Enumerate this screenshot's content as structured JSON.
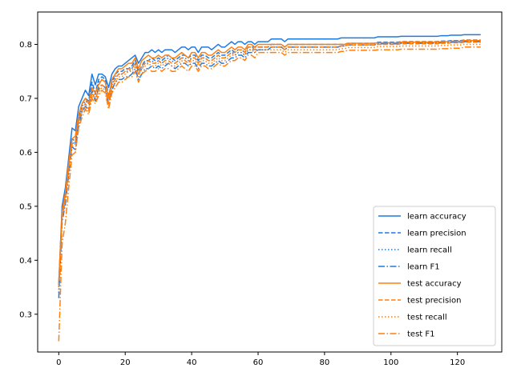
{
  "chart_data": {
    "type": "line",
    "title": "",
    "xlabel": "",
    "ylabel": "",
    "xlim": [
      -6.35,
      133.35
    ],
    "ylim": [
      0.23,
      0.86
    ],
    "xticks": [
      "0",
      "20",
      "40",
      "60",
      "80",
      "100",
      "120"
    ],
    "yticks": [
      "0.3",
      "0.4",
      "0.5",
      "0.6",
      "0.7",
      "0.8"
    ],
    "grid": false,
    "legend_position": "lower-right",
    "colors": {
      "learn": "#1f7ae0",
      "test": "#ff7f0e"
    },
    "x": [
      0,
      1,
      2,
      3,
      4,
      5,
      6,
      7,
      8,
      9,
      10,
      11,
      12,
      13,
      14,
      15,
      16,
      17,
      18,
      19,
      20,
      21,
      22,
      23,
      24,
      25,
      26,
      27,
      28,
      29,
      30,
      31,
      32,
      33,
      34,
      35,
      36,
      37,
      38,
      39,
      40,
      41,
      42,
      43,
      44,
      45,
      46,
      47,
      48,
      49,
      50,
      51,
      52,
      53,
      54,
      55,
      56,
      57,
      58,
      59,
      60,
      61,
      62,
      63,
      64,
      65,
      66,
      67,
      68,
      69,
      70,
      71,
      72,
      73,
      74,
      75,
      76,
      77,
      78,
      79,
      80,
      81,
      82,
      83,
      84,
      85,
      86,
      87,
      88,
      89,
      90,
      91,
      92,
      93,
      94,
      95,
      96,
      97,
      98,
      99,
      100,
      101,
      102,
      103,
      104,
      105,
      106,
      107,
      108,
      109,
      110,
      111,
      112,
      113,
      114,
      115,
      116,
      117,
      118,
      119,
      120,
      121,
      122,
      123,
      124,
      125,
      126,
      127
    ],
    "series": [
      {
        "name": "learn accuracy",
        "group": "learn",
        "dash": "solid",
        "values": [
          0.355,
          0.5,
          0.535,
          0.59,
          0.645,
          0.64,
          0.685,
          0.7,
          0.715,
          0.705,
          0.745,
          0.725,
          0.745,
          0.745,
          0.74,
          0.72,
          0.745,
          0.755,
          0.76,
          0.76,
          0.765,
          0.77,
          0.775,
          0.78,
          0.765,
          0.775,
          0.785,
          0.785,
          0.79,
          0.785,
          0.79,
          0.785,
          0.79,
          0.79,
          0.79,
          0.785,
          0.79,
          0.795,
          0.795,
          0.79,
          0.795,
          0.795,
          0.785,
          0.795,
          0.795,
          0.795,
          0.79,
          0.795,
          0.8,
          0.795,
          0.795,
          0.8,
          0.805,
          0.8,
          0.805,
          0.805,
          0.8,
          0.805,
          0.805,
          0.8,
          0.805,
          0.805,
          0.805,
          0.805,
          0.81,
          0.81,
          0.81,
          0.81,
          0.805,
          0.81,
          0.81,
          0.81,
          0.81,
          0.81,
          0.81,
          0.81,
          0.81,
          0.81,
          0.81,
          0.81,
          0.81,
          0.81,
          0.81,
          0.81,
          0.81,
          0.812,
          0.812,
          0.812,
          0.812,
          0.812,
          0.812,
          0.812,
          0.812,
          0.812,
          0.812,
          0.812,
          0.814,
          0.814,
          0.814,
          0.814,
          0.814,
          0.814,
          0.814,
          0.815,
          0.815,
          0.815,
          0.815,
          0.815,
          0.815,
          0.815,
          0.815,
          0.815,
          0.815,
          0.815,
          0.815,
          0.816,
          0.816,
          0.816,
          0.817,
          0.817,
          0.817,
          0.817,
          0.818,
          0.818,
          0.818,
          0.818,
          0.818,
          0.818
        ]
      },
      {
        "name": "learn precision",
        "group": "learn",
        "dash": "dashed",
        "values": [
          0.35,
          0.485,
          0.52,
          0.575,
          0.625,
          0.62,
          0.665,
          0.69,
          0.7,
          0.695,
          0.73,
          0.71,
          0.735,
          0.74,
          0.735,
          0.705,
          0.73,
          0.745,
          0.75,
          0.75,
          0.755,
          0.755,
          0.76,
          0.77,
          0.75,
          0.76,
          0.77,
          0.77,
          0.775,
          0.77,
          0.775,
          0.77,
          0.775,
          0.78,
          0.775,
          0.77,
          0.775,
          0.78,
          0.78,
          0.775,
          0.78,
          0.78,
          0.77,
          0.78,
          0.78,
          0.775,
          0.775,
          0.78,
          0.785,
          0.78,
          0.78,
          0.785,
          0.79,
          0.785,
          0.79,
          0.79,
          0.785,
          0.795,
          0.795,
          0.795,
          0.795,
          0.795,
          0.795,
          0.795,
          0.8,
          0.8,
          0.8,
          0.8,
          0.795,
          0.8,
          0.8,
          0.8,
          0.8,
          0.8,
          0.8,
          0.8,
          0.8,
          0.8,
          0.8,
          0.8,
          0.8,
          0.8,
          0.8,
          0.8,
          0.8,
          0.8,
          0.8,
          0.802,
          0.802,
          0.802,
          0.802,
          0.802,
          0.802,
          0.802,
          0.802,
          0.802,
          0.804,
          0.804,
          0.804,
          0.804,
          0.804,
          0.804,
          0.804,
          0.805,
          0.805,
          0.805,
          0.805,
          0.805,
          0.805,
          0.805,
          0.805,
          0.805,
          0.805,
          0.805,
          0.805,
          0.806,
          0.806,
          0.806,
          0.807,
          0.807,
          0.807,
          0.807,
          0.808,
          0.808,
          0.808,
          0.808,
          0.808,
          0.808
        ]
      },
      {
        "name": "learn recall",
        "group": "learn",
        "dash": "dotted",
        "values": [
          0.34,
          0.48,
          0.515,
          0.57,
          0.62,
          0.615,
          0.66,
          0.685,
          0.695,
          0.69,
          0.725,
          0.705,
          0.73,
          0.735,
          0.73,
          0.7,
          0.725,
          0.74,
          0.745,
          0.745,
          0.75,
          0.75,
          0.755,
          0.765,
          0.745,
          0.755,
          0.765,
          0.765,
          0.77,
          0.765,
          0.77,
          0.765,
          0.77,
          0.775,
          0.77,
          0.765,
          0.77,
          0.775,
          0.775,
          0.77,
          0.775,
          0.775,
          0.765,
          0.775,
          0.775,
          0.77,
          0.77,
          0.775,
          0.78,
          0.775,
          0.775,
          0.78,
          0.785,
          0.78,
          0.785,
          0.785,
          0.78,
          0.79,
          0.79,
          0.79,
          0.79,
          0.79,
          0.79,
          0.79,
          0.795,
          0.795,
          0.795,
          0.795,
          0.79,
          0.795,
          0.795,
          0.795,
          0.795,
          0.795,
          0.795,
          0.795,
          0.795,
          0.795,
          0.795,
          0.795,
          0.795,
          0.795,
          0.795,
          0.795,
          0.795,
          0.797,
          0.797,
          0.799,
          0.799,
          0.799,
          0.799,
          0.799,
          0.799,
          0.799,
          0.799,
          0.799,
          0.801,
          0.801,
          0.801,
          0.801,
          0.801,
          0.801,
          0.801,
          0.802,
          0.802,
          0.802,
          0.802,
          0.802,
          0.802,
          0.802,
          0.802,
          0.802,
          0.802,
          0.802,
          0.802,
          0.803,
          0.803,
          0.803,
          0.804,
          0.804,
          0.804,
          0.804,
          0.805,
          0.805,
          0.805,
          0.805,
          0.805,
          0.805
        ]
      },
      {
        "name": "learn F1",
        "group": "learn",
        "dash": "dashdot",
        "values": [
          0.33,
          0.47,
          0.505,
          0.56,
          0.61,
          0.605,
          0.65,
          0.675,
          0.685,
          0.68,
          0.715,
          0.695,
          0.72,
          0.725,
          0.72,
          0.69,
          0.715,
          0.73,
          0.735,
          0.735,
          0.74,
          0.74,
          0.745,
          0.755,
          0.735,
          0.745,
          0.755,
          0.755,
          0.76,
          0.755,
          0.76,
          0.755,
          0.76,
          0.765,
          0.76,
          0.755,
          0.76,
          0.765,
          0.765,
          0.76,
          0.765,
          0.765,
          0.755,
          0.765,
          0.765,
          0.76,
          0.76,
          0.765,
          0.77,
          0.765,
          0.765,
          0.77,
          0.775,
          0.775,
          0.78,
          0.78,
          0.775,
          0.785,
          0.785,
          0.785,
          0.79,
          0.79,
          0.79,
          0.79,
          0.795,
          0.795,
          0.795,
          0.795,
          0.79,
          0.795,
          0.795,
          0.795,
          0.795,
          0.795,
          0.795,
          0.795,
          0.795,
          0.795,
          0.795,
          0.795,
          0.795,
          0.795,
          0.795,
          0.795,
          0.795,
          0.797,
          0.797,
          0.799,
          0.799,
          0.799,
          0.799,
          0.799,
          0.799,
          0.799,
          0.799,
          0.799,
          0.801,
          0.801,
          0.801,
          0.801,
          0.801,
          0.801,
          0.801,
          0.802,
          0.802,
          0.802,
          0.802,
          0.802,
          0.802,
          0.802,
          0.802,
          0.802,
          0.802,
          0.802,
          0.802,
          0.803,
          0.803,
          0.803,
          0.804,
          0.804,
          0.804,
          0.804,
          0.805,
          0.805,
          0.805,
          0.805,
          0.805,
          0.805
        ]
      },
      {
        "name": "test accuracy",
        "group": "test",
        "dash": "solid",
        "values": [
          0.36,
          0.49,
          0.525,
          0.58,
          0.625,
          0.63,
          0.67,
          0.69,
          0.7,
          0.69,
          0.72,
          0.71,
          0.725,
          0.735,
          0.73,
          0.7,
          0.735,
          0.745,
          0.755,
          0.755,
          0.76,
          0.765,
          0.765,
          0.775,
          0.755,
          0.77,
          0.775,
          0.78,
          0.775,
          0.775,
          0.78,
          0.775,
          0.78,
          0.78,
          0.775,
          0.775,
          0.78,
          0.785,
          0.78,
          0.775,
          0.785,
          0.785,
          0.775,
          0.785,
          0.785,
          0.78,
          0.78,
          0.785,
          0.79,
          0.785,
          0.785,
          0.79,
          0.795,
          0.79,
          0.795,
          0.795,
          0.79,
          0.8,
          0.8,
          0.795,
          0.8,
          0.8,
          0.8,
          0.8,
          0.8,
          0.8,
          0.8,
          0.8,
          0.795,
          0.8,
          0.8,
          0.8,
          0.8,
          0.8,
          0.8,
          0.8,
          0.8,
          0.8,
          0.8,
          0.8,
          0.8,
          0.8,
          0.8,
          0.8,
          0.8,
          0.8,
          0.8,
          0.802,
          0.802,
          0.802,
          0.802,
          0.802,
          0.802,
          0.802,
          0.802,
          0.802,
          0.803,
          0.803,
          0.803,
          0.803,
          0.803,
          0.803,
          0.803,
          0.804,
          0.804,
          0.804,
          0.804,
          0.804,
          0.804,
          0.804,
          0.804,
          0.804,
          0.804,
          0.804,
          0.804,
          0.805,
          0.805,
          0.805,
          0.806,
          0.806,
          0.806,
          0.806,
          0.807,
          0.807,
          0.807,
          0.807,
          0.807,
          0.807
        ]
      },
      {
        "name": "test precision",
        "group": "test",
        "dash": "dashed",
        "values": [
          0.35,
          0.48,
          0.515,
          0.57,
          0.615,
          0.62,
          0.66,
          0.68,
          0.69,
          0.68,
          0.71,
          0.7,
          0.715,
          0.725,
          0.72,
          0.69,
          0.725,
          0.735,
          0.745,
          0.745,
          0.75,
          0.755,
          0.755,
          0.765,
          0.745,
          0.76,
          0.765,
          0.77,
          0.765,
          0.765,
          0.77,
          0.765,
          0.77,
          0.77,
          0.765,
          0.765,
          0.77,
          0.775,
          0.77,
          0.765,
          0.775,
          0.775,
          0.765,
          0.775,
          0.775,
          0.77,
          0.77,
          0.775,
          0.78,
          0.775,
          0.775,
          0.78,
          0.785,
          0.785,
          0.79,
          0.79,
          0.785,
          0.795,
          0.795,
          0.79,
          0.795,
          0.795,
          0.795,
          0.795,
          0.795,
          0.795,
          0.795,
          0.795,
          0.79,
          0.795,
          0.795,
          0.795,
          0.795,
          0.795,
          0.795,
          0.795,
          0.795,
          0.795,
          0.795,
          0.795,
          0.795,
          0.795,
          0.795,
          0.795,
          0.795,
          0.797,
          0.797,
          0.799,
          0.799,
          0.799,
          0.799,
          0.799,
          0.799,
          0.799,
          0.799,
          0.799,
          0.8,
          0.8,
          0.8,
          0.8,
          0.8,
          0.8,
          0.8,
          0.801,
          0.801,
          0.801,
          0.801,
          0.801,
          0.801,
          0.801,
          0.801,
          0.801,
          0.801,
          0.801,
          0.801,
          0.802,
          0.802,
          0.802,
          0.803,
          0.803,
          0.803,
          0.803,
          0.804,
          0.804,
          0.804,
          0.804,
          0.804,
          0.804
        ]
      },
      {
        "name": "test recall",
        "group": "test",
        "dash": "dotted",
        "values": [
          0.345,
          0.475,
          0.51,
          0.565,
          0.61,
          0.615,
          0.655,
          0.675,
          0.685,
          0.675,
          0.705,
          0.695,
          0.71,
          0.72,
          0.715,
          0.685,
          0.72,
          0.73,
          0.74,
          0.74,
          0.745,
          0.75,
          0.75,
          0.76,
          0.74,
          0.755,
          0.76,
          0.765,
          0.76,
          0.76,
          0.765,
          0.76,
          0.765,
          0.765,
          0.76,
          0.76,
          0.765,
          0.77,
          0.765,
          0.76,
          0.77,
          0.77,
          0.76,
          0.77,
          0.77,
          0.765,
          0.765,
          0.77,
          0.775,
          0.77,
          0.77,
          0.775,
          0.78,
          0.78,
          0.785,
          0.785,
          0.78,
          0.79,
          0.79,
          0.785,
          0.79,
          0.79,
          0.79,
          0.79,
          0.79,
          0.79,
          0.79,
          0.79,
          0.785,
          0.79,
          0.79,
          0.79,
          0.79,
          0.79,
          0.79,
          0.79,
          0.79,
          0.79,
          0.79,
          0.79,
          0.79,
          0.79,
          0.79,
          0.79,
          0.79,
          0.792,
          0.792,
          0.794,
          0.794,
          0.794,
          0.794,
          0.794,
          0.794,
          0.794,
          0.794,
          0.794,
          0.796,
          0.796,
          0.796,
          0.796,
          0.796,
          0.796,
          0.796,
          0.797,
          0.797,
          0.797,
          0.797,
          0.797,
          0.797,
          0.797,
          0.797,
          0.797,
          0.797,
          0.797,
          0.797,
          0.798,
          0.798,
          0.798,
          0.799,
          0.799,
          0.799,
          0.799,
          0.8,
          0.8,
          0.8,
          0.8,
          0.8,
          0.8
        ]
      },
      {
        "name": "test F1",
        "group": "test",
        "dash": "dashdot",
        "values": [
          0.25,
          0.43,
          0.47,
          0.535,
          0.595,
          0.6,
          0.645,
          0.665,
          0.68,
          0.67,
          0.7,
          0.69,
          0.705,
          0.715,
          0.71,
          0.68,
          0.71,
          0.72,
          0.73,
          0.73,
          0.735,
          0.74,
          0.74,
          0.75,
          0.73,
          0.745,
          0.75,
          0.755,
          0.75,
          0.75,
          0.755,
          0.75,
          0.755,
          0.755,
          0.75,
          0.75,
          0.755,
          0.76,
          0.755,
          0.75,
          0.76,
          0.76,
          0.75,
          0.76,
          0.76,
          0.755,
          0.755,
          0.76,
          0.765,
          0.76,
          0.76,
          0.765,
          0.77,
          0.77,
          0.775,
          0.775,
          0.77,
          0.78,
          0.78,
          0.775,
          0.785,
          0.785,
          0.785,
          0.785,
          0.785,
          0.785,
          0.785,
          0.785,
          0.78,
          0.785,
          0.785,
          0.785,
          0.785,
          0.785,
          0.785,
          0.785,
          0.785,
          0.785,
          0.785,
          0.785,
          0.785,
          0.785,
          0.785,
          0.785,
          0.785,
          0.787,
          0.787,
          0.789,
          0.789,
          0.789,
          0.789,
          0.789,
          0.789,
          0.789,
          0.789,
          0.789,
          0.79,
          0.79,
          0.79,
          0.79,
          0.79,
          0.79,
          0.79,
          0.791,
          0.791,
          0.791,
          0.791,
          0.791,
          0.791,
          0.791,
          0.791,
          0.791,
          0.791,
          0.791,
          0.791,
          0.792,
          0.792,
          0.792,
          0.793,
          0.793,
          0.793,
          0.793,
          0.795,
          0.795,
          0.795,
          0.795,
          0.795,
          0.795
        ]
      }
    ]
  }
}
